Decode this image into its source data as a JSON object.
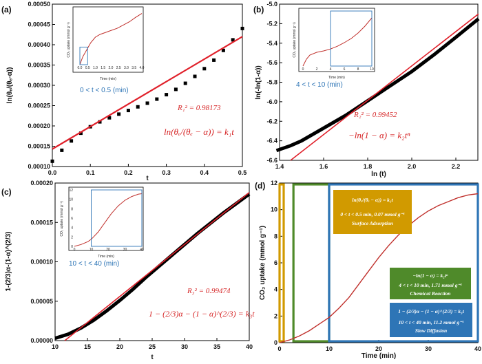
{
  "colors": {
    "fit_line": "#e0202a",
    "data": "#000000",
    "range_text": "#2e75b6",
    "box_orange": "#d19a00",
    "box_green": "#4f8a2a",
    "box_blue": "#2e75b6"
  },
  "chart_data": [
    {
      "panel": "(a)",
      "type": "scatter",
      "xlabel": "t",
      "ylabel": "ln(θₑ/(θₑ-α))",
      "xlim": [
        0,
        0.5
      ],
      "ylim": [
        0.0001,
        0.0005
      ],
      "xticks": [
        "0.0",
        "0.1",
        "0.2",
        "0.3",
        "0.4",
        "0.5"
      ],
      "yticks": [
        "0.00010",
        "0.00015",
        "0.00020",
        "0.00025",
        "0.00030",
        "0.00035",
        "0.00040",
        "0.00045",
        "0.00050"
      ],
      "range_label": "0 < t < 0.5 (min)",
      "r2_label": "R₁² = 0.98173",
      "equation": "ln(θₑ/(θₑ − α)) = k₁t",
      "x": [
        0.0,
        0.025,
        0.05,
        0.075,
        0.1,
        0.125,
        0.15,
        0.175,
        0.2,
        0.225,
        0.25,
        0.275,
        0.3,
        0.325,
        0.35,
        0.375,
        0.4,
        0.425,
        0.45,
        0.475,
        0.5
      ],
      "y": [
        0.000113,
        0.00014,
        0.000163,
        0.000182,
        0.000198,
        0.00021,
        0.00022,
        0.000229,
        0.000238,
        0.000247,
        0.000256,
        0.000266,
        0.000277,
        0.00029,
        0.000305,
        0.000322,
        0.000341,
        0.000362,
        0.000386,
        0.000412,
        0.00044
      ],
      "fit": {
        "x": [
          0.0,
          0.5
        ],
        "y": [
          0.000143,
          0.00042
        ]
      },
      "inset": {
        "xlabel": "Time (min)",
        "ylabel": "CO₂ uptake (mmol g⁻¹)",
        "xticks": [
          "0.0",
          "0.5",
          "1.0",
          "1.5",
          "2.0",
          "2.5",
          "3.0",
          "3.5",
          "4.0"
        ],
        "xlim": [
          0,
          4
        ],
        "ylim": [
          0,
          1
        ],
        "x": [
          0,
          0.1,
          0.2,
          0.3,
          0.5,
          0.7,
          1.0,
          1.3,
          1.6,
          2.0,
          2.4,
          2.8,
          3.2,
          3.6,
          4.0
        ],
        "y": [
          0.0,
          0.08,
          0.15,
          0.2,
          0.3,
          0.4,
          0.5,
          0.55,
          0.58,
          0.62,
          0.66,
          0.72,
          0.78,
          0.86,
          0.93
        ],
        "highlight": [
          0,
          0.5
        ]
      }
    },
    {
      "panel": "(b)",
      "type": "line",
      "xlabel": "ln (t)",
      "ylabel": "ln(-ln(1-α))",
      "xlim": [
        1.4,
        2.3
      ],
      "ylim": [
        -6.6,
        -5.0
      ],
      "xticks": [
        "1.4",
        "1.6",
        "1.8",
        "2.0",
        "2.2"
      ],
      "xtick_values": [
        1.4,
        1.6,
        1.8,
        2.0,
        2.2
      ],
      "yticks": [
        "-6.6",
        "-6.4",
        "-6.2",
        "-6.0",
        "-5.8",
        "-5.6",
        "-5.4",
        "-5.2",
        "-5.0"
      ],
      "range_label": "4 < t < 10 (min)",
      "r2_label": "R₂² = 0.99452",
      "equation": "−ln(1 − α) = k₂tⁿ",
      "x": [
        1.386,
        1.45,
        1.5,
        1.6,
        1.7,
        1.8,
        1.9,
        2.0,
        2.1,
        2.2,
        2.303
      ],
      "y": [
        -6.5,
        -6.45,
        -6.4,
        -6.27,
        -6.14,
        -5.99,
        -5.84,
        -5.69,
        -5.52,
        -5.34,
        -5.15
      ],
      "fit": {
        "x": [
          1.45,
          2.303
        ],
        "y": [
          -6.6,
          -5.1
        ]
      },
      "inset": {
        "xlabel": "Time (min)",
        "ylabel": "CO₂ uptake (mmol g⁻¹)",
        "xticks": [
          "0",
          "2",
          "4",
          "6",
          "8",
          "10"
        ],
        "xlim": [
          0,
          10
        ],
        "ylim": [
          0,
          2.0
        ],
        "x": [
          0,
          0.5,
          1,
          2,
          3,
          4,
          5,
          6,
          7,
          8,
          9,
          10
        ],
        "y": [
          0,
          0.25,
          0.4,
          0.5,
          0.55,
          0.62,
          0.72,
          0.85,
          1.0,
          1.2,
          1.45,
          1.75
        ],
        "highlight": [
          4,
          10
        ]
      }
    },
    {
      "panel": "(c)",
      "type": "line",
      "xlabel": "t",
      "ylabel": "1-(2/3)α-(1-α)^(2/3)",
      "xlim": [
        10,
        40
      ],
      "ylim": [
        0,
        0.0002
      ],
      "xticks": [
        "10",
        "15",
        "20",
        "25",
        "30",
        "35",
        "40"
      ],
      "yticks": [
        "0.00000",
        "0.00005",
        "0.00010",
        "0.00015",
        "0.00020"
      ],
      "range_label": "10 < t < 40 (min)",
      "r2_label": "R₃² = 0.99474",
      "equation": "1 − (2/3)α − (1 − α)^(2/3) = k₃t",
      "x": [
        10,
        12,
        14,
        16,
        18,
        20,
        22,
        24,
        26,
        28,
        30,
        32,
        34,
        36,
        38,
        40
      ],
      "y": [
        3e-06,
        8e-06,
        1.6e-05,
        2.6e-05,
        3.8e-05,
        5.1e-05,
        6.5e-05,
        8e-05,
        9.4e-05,
        0.000108,
        0.000122,
        0.000136,
        0.000149,
        0.000162,
        0.000174,
        0.000186
      ],
      "fit": {
        "x": [
          11.5,
          40
        ],
        "y": [
          0.0,
          0.000188
        ]
      },
      "inset": {
        "xlabel": "Time (min)",
        "ylabel": "CO₂ uptake (mmol g⁻¹)",
        "xticks": [
          "0",
          "10",
          "20",
          "30",
          "40"
        ],
        "yticks": [
          "0",
          "2",
          "4",
          "6",
          "8",
          "10",
          "12"
        ],
        "xlim": [
          0,
          40
        ],
        "ylim": [
          0,
          12
        ],
        "x": [
          0,
          4,
          8,
          10,
          14,
          18,
          22,
          26,
          30,
          34,
          38,
          40
        ],
        "y": [
          0,
          0.4,
          1.0,
          1.5,
          3.0,
          5.0,
          7.0,
          8.6,
          9.8,
          10.6,
          11.1,
          11.2
        ],
        "highlight": [
          10,
          40
        ]
      }
    },
    {
      "panel": "(d)",
      "type": "line",
      "xlabel": "Time (min)",
      "ylabel": "CO₂ uptake (mmol g⁻¹)",
      "xlim": [
        0,
        40
      ],
      "ylim": [
        0,
        12
      ],
      "xticks": [
        "0",
        "10",
        "20",
        "30",
        "40"
      ],
      "yticks": [
        "0",
        "2",
        "4",
        "6",
        "8",
        "10",
        "12"
      ],
      "x": [
        0,
        2,
        4,
        6,
        8,
        10,
        12,
        14,
        16,
        18,
        20,
        22,
        24,
        26,
        28,
        30,
        32,
        34,
        36,
        38,
        40
      ],
      "y": [
        0,
        0.2,
        0.5,
        0.9,
        1.4,
        1.9,
        2.6,
        3.4,
        4.4,
        5.4,
        6.4,
        7.3,
        8.1,
        8.8,
        9.4,
        9.9,
        10.3,
        10.6,
        10.9,
        11.1,
        11.2
      ],
      "regions": [
        {
          "name": "Surface Adsorption",
          "range": [
            0,
            0.5
          ],
          "color": "#d19a00"
        },
        {
          "name": "Chemical Reaction",
          "range": [
            4,
            10
          ],
          "color": "#4f8a2a"
        },
        {
          "name": "Slow Diffusion",
          "range": [
            10,
            40
          ],
          "color": "#2e75b6"
        }
      ],
      "annotations": [
        {
          "equation": "ln(θₑ/(θₑ − α)) = k₁t",
          "range": "0 < t < 0.5 min, 0.07 mmol g⁻¹",
          "mechanism": "Surface Adsorption"
        },
        {
          "equation": "−ln(1 − α) = k₂tⁿ",
          "range": "4 < t < 10 min, 1.71 mmol g⁻¹",
          "mechanism": "Chemical Reaction"
        },
        {
          "equation": "1 − (2/3)α − (1 − α)^(2/3) = k₃t",
          "range": "10 < t < 40 min, 11.2 mmol g⁻¹",
          "mechanism": "Slow Diffusion"
        }
      ]
    }
  ]
}
